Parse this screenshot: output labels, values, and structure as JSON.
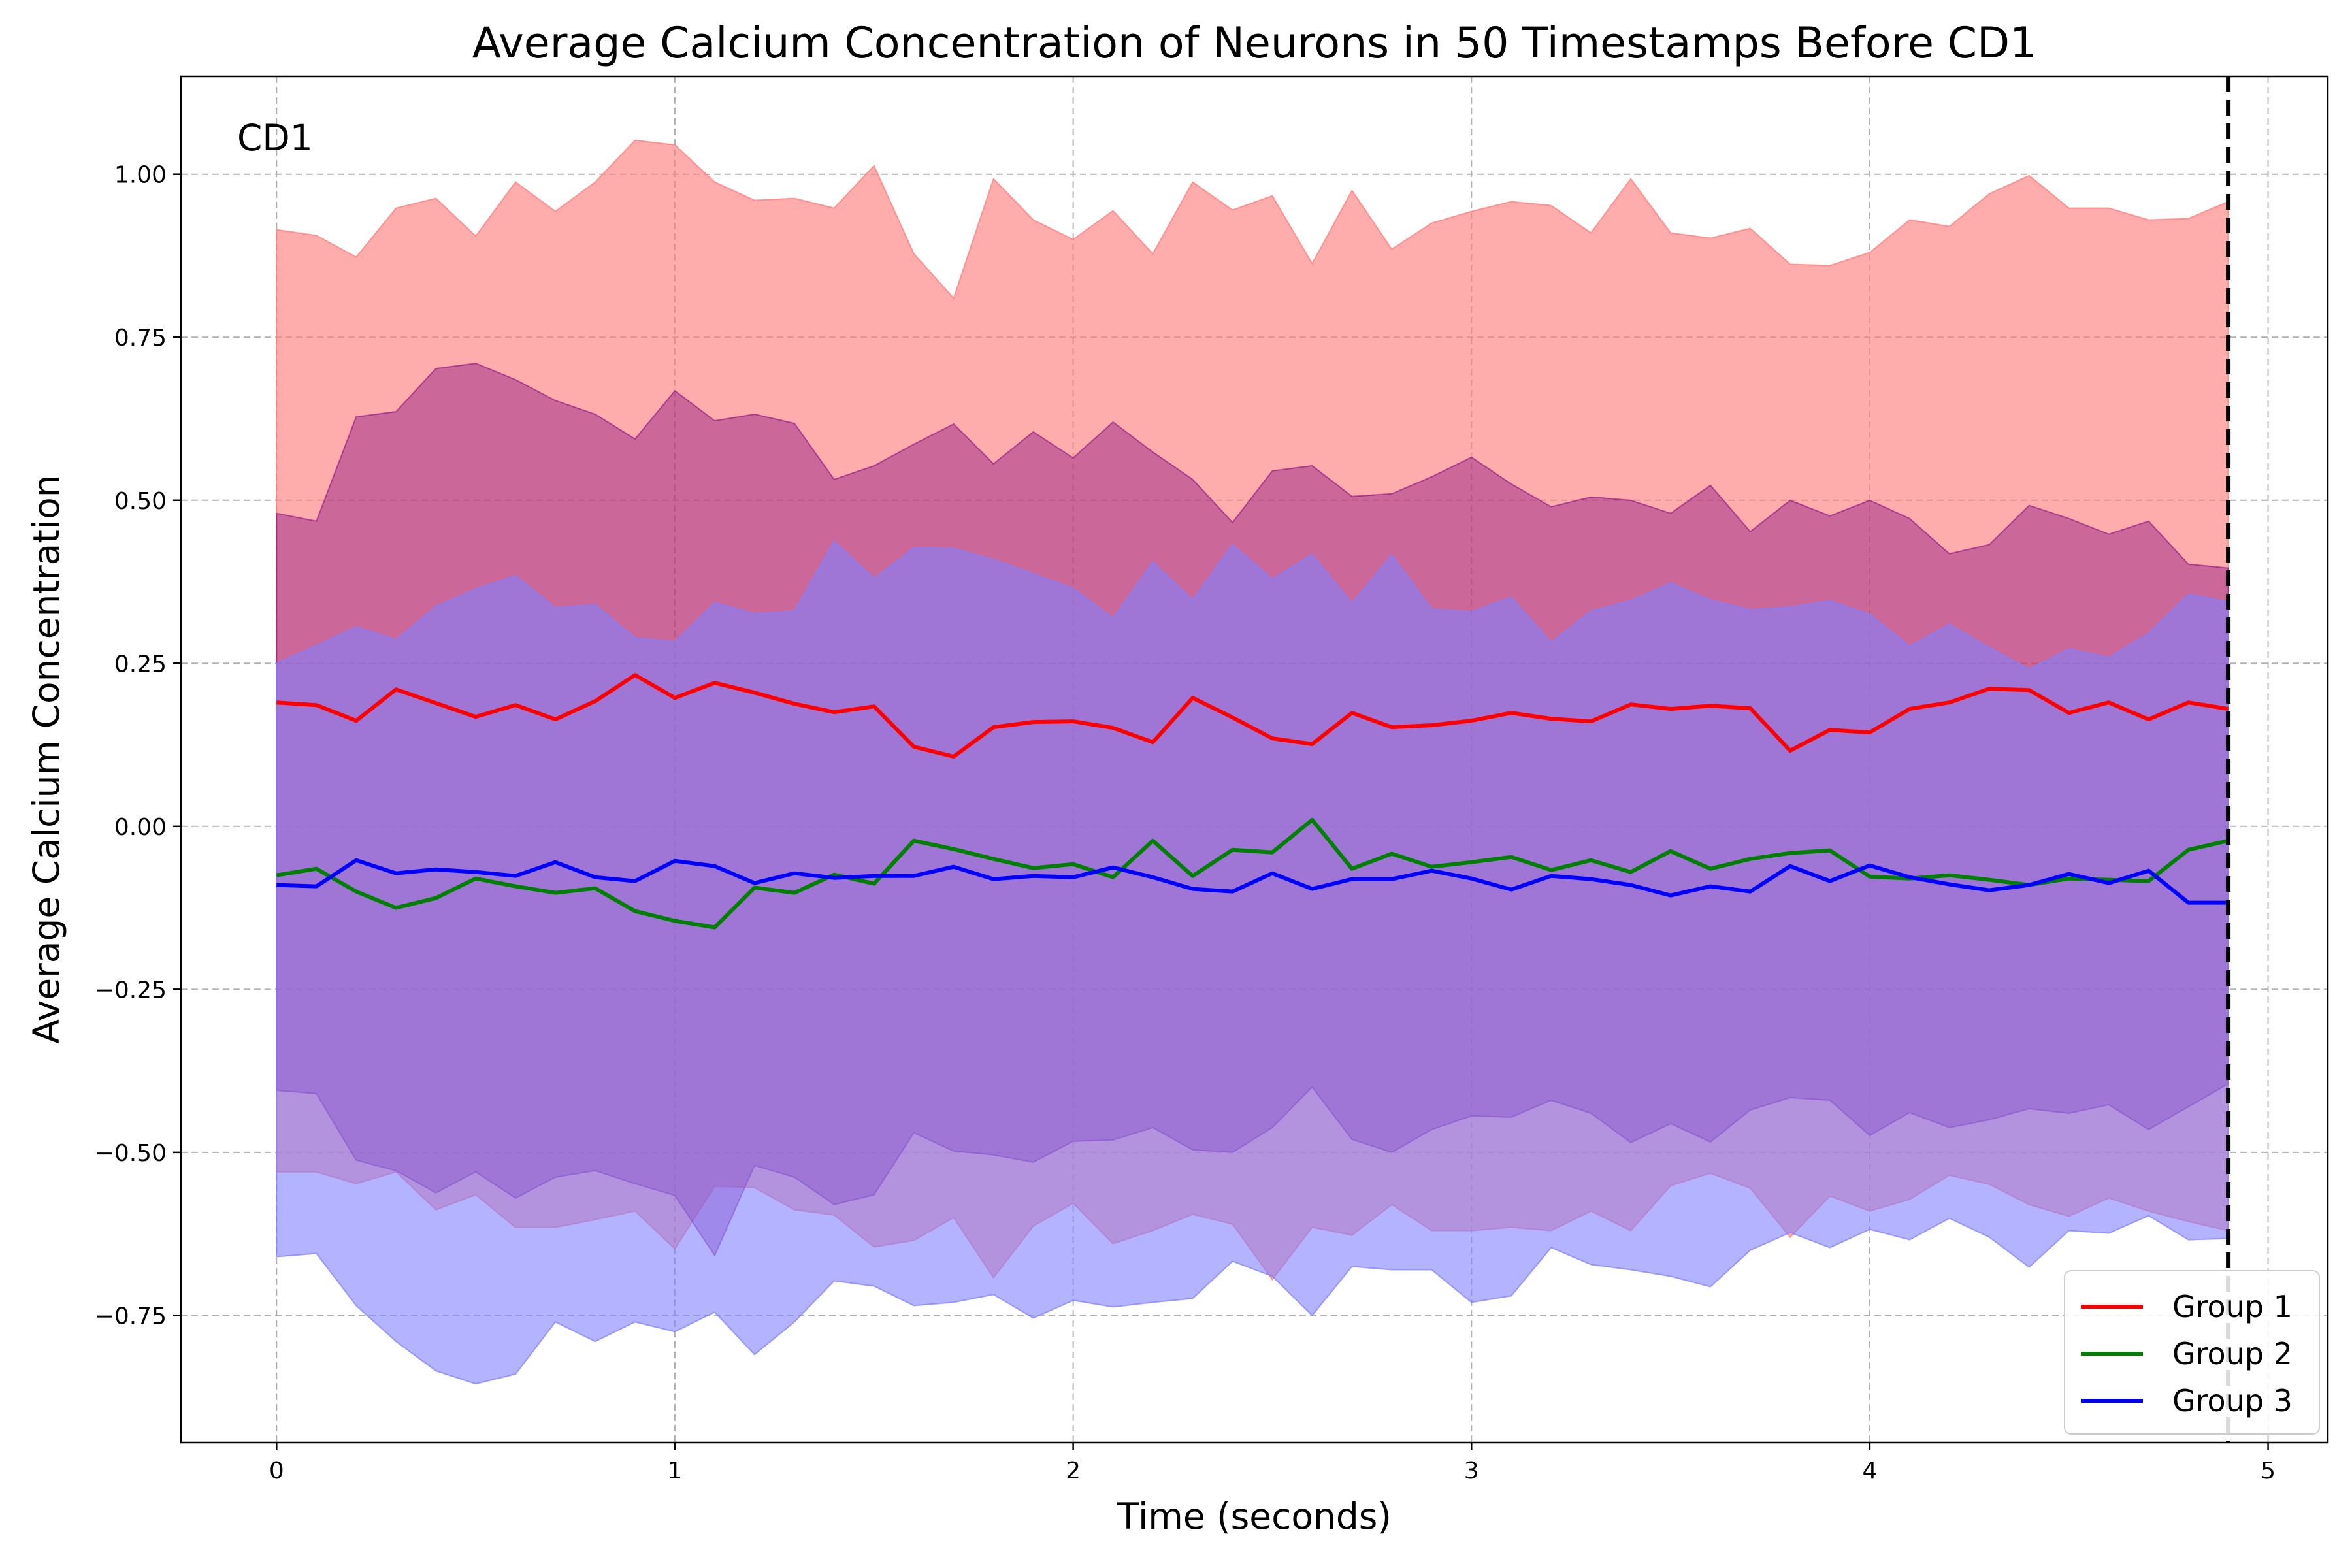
{
  "chart_data": {
    "type": "line",
    "title": "Average Calcium Concentration of Neurons in 50 Timestamps Before CD1",
    "xlabel": "Time (seconds)",
    "ylabel": "Average Calcium Concentration",
    "xlim": [
      -0.24,
      5.15
    ],
    "ylim": [
      -0.945,
      1.15
    ],
    "xticks": [
      0,
      1,
      2,
      3,
      4,
      5
    ],
    "xtick_labels": [
      "0",
      "1",
      "2",
      "3",
      "4",
      "5"
    ],
    "yticks": [
      -0.75,
      -0.5,
      -0.25,
      0.0,
      0.25,
      0.5,
      0.75,
      1.0
    ],
    "ytick_labels": [
      "−0.75",
      "−0.50",
      "−0.25",
      "0.00",
      "0.25",
      "0.50",
      "0.75",
      "1.00"
    ],
    "grid": true,
    "legend_position": "lower-right",
    "annotation": {
      "text": "CD1",
      "x": 4.9
    },
    "x": [
      0.0,
      0.1,
      0.2,
      0.3,
      0.4,
      0.5,
      0.6,
      0.7,
      0.8,
      0.9,
      1.0,
      1.1,
      1.2,
      1.3,
      1.4,
      1.5,
      1.6,
      1.7,
      1.8,
      1.9,
      2.0,
      2.1,
      2.2,
      2.3,
      2.4,
      2.5,
      2.6,
      2.7,
      2.8,
      2.9,
      3.0,
      3.1,
      3.2,
      3.3,
      3.4,
      3.5,
      3.6,
      3.7,
      3.8,
      3.9,
      4.0,
      4.1,
      4.2,
      4.3,
      4.4,
      4.5,
      4.6,
      4.7,
      4.8,
      4.9
    ],
    "series": [
      {
        "name": "Group 1",
        "color": "#ff0000",
        "band_color": "#ff8080",
        "band_opacity": 0.65,
        "values": [
          0.19,
          0.186,
          0.162,
          0.21,
          0.189,
          0.168,
          0.186,
          0.164,
          0.192,
          0.232,
          0.197,
          0.22,
          0.205,
          0.188,
          0.175,
          0.184,
          0.122,
          0.107,
          0.152,
          0.16,
          0.161,
          0.151,
          0.129,
          0.197,
          0.167,
          0.135,
          0.126,
          0.174,
          0.152,
          0.155,
          0.162,
          0.174,
          0.165,
          0.161,
          0.187,
          0.18,
          0.185,
          0.181,
          0.116,
          0.148,
          0.144,
          0.18,
          0.19,
          0.211,
          0.209,
          0.174,
          0.19,
          0.164,
          0.19,
          0.18
        ],
        "upper": [
          0.915,
          0.906,
          0.873,
          0.948,
          0.963,
          0.905,
          0.988,
          0.943,
          0.988,
          1.052,
          1.045,
          0.988,
          0.96,
          0.963,
          0.948,
          1.013,
          0.878,
          0.81,
          0.993,
          0.93,
          0.9,
          0.944,
          0.878,
          0.988,
          0.945,
          0.967,
          0.863,
          0.975,
          0.885,
          0.925,
          0.943,
          0.958,
          0.952,
          0.91,
          0.993,
          0.91,
          0.902,
          0.917,
          0.862,
          0.86,
          0.88,
          0.93,
          0.92,
          0.97,
          0.998,
          0.948,
          0.948,
          0.93,
          0.932,
          0.958
        ],
        "lower": [
          -0.53,
          -0.53,
          -0.548,
          -0.53,
          -0.588,
          -0.565,
          -0.615,
          -0.615,
          -0.603,
          -0.59,
          -0.648,
          -0.552,
          -0.554,
          -0.588,
          -0.596,
          -0.645,
          -0.635,
          -0.6,
          -0.692,
          -0.613,
          -0.578,
          -0.64,
          -0.62,
          -0.595,
          -0.61,
          -0.695,
          -0.615,
          -0.627,
          -0.58,
          -0.62,
          -0.62,
          -0.615,
          -0.62,
          -0.59,
          -0.62,
          -0.551,
          -0.532,
          -0.555,
          -0.63,
          -0.567,
          -0.59,
          -0.572,
          -0.535,
          -0.549,
          -0.58,
          -0.598,
          -0.57,
          -0.59,
          -0.606,
          -0.62
        ]
      },
      {
        "name": "Group 2",
        "color": "#008000",
        "band_color": "#800080",
        "band_opacity": 0.4,
        "values": [
          -0.075,
          -0.065,
          -0.1,
          -0.125,
          -0.11,
          -0.08,
          -0.092,
          -0.102,
          -0.095,
          -0.13,
          -0.145,
          -0.155,
          -0.094,
          -0.102,
          -0.074,
          -0.088,
          -0.022,
          -0.035,
          -0.05,
          -0.064,
          -0.058,
          -0.078,
          -0.022,
          -0.076,
          -0.036,
          -0.04,
          0.01,
          -0.065,
          -0.042,
          -0.062,
          -0.055,
          -0.047,
          -0.067,
          -0.052,
          -0.07,
          -0.038,
          -0.065,
          -0.05,
          -0.041,
          -0.037,
          -0.077,
          -0.08,
          -0.075,
          -0.082,
          -0.09,
          -0.08,
          -0.082,
          -0.084,
          -0.036,
          -0.022
        ],
        "upper": [
          0.48,
          0.468,
          0.628,
          0.636,
          0.702,
          0.71,
          0.685,
          0.653,
          0.632,
          0.594,
          0.668,
          0.622,
          0.632,
          0.618,
          0.532,
          0.553,
          0.586,
          0.617,
          0.556,
          0.605,
          0.565,
          0.62,
          0.574,
          0.532,
          0.466,
          0.545,
          0.553,
          0.506,
          0.51,
          0.536,
          0.566,
          0.525,
          0.49,
          0.505,
          0.5,
          0.48,
          0.523,
          0.452,
          0.5,
          0.476,
          0.5,
          0.472,
          0.418,
          0.432,
          0.492,
          0.472,
          0.448,
          0.468,
          0.402,
          0.396
        ],
        "lower": [
          -0.405,
          -0.41,
          -0.512,
          -0.528,
          -0.562,
          -0.53,
          -0.57,
          -0.538,
          -0.528,
          -0.548,
          -0.566,
          -0.658,
          -0.52,
          -0.538,
          -0.58,
          -0.565,
          -0.47,
          -0.498,
          -0.504,
          -0.515,
          -0.483,
          -0.481,
          -0.462,
          -0.496,
          -0.5,
          -0.462,
          -0.4,
          -0.48,
          -0.5,
          -0.465,
          -0.444,
          -0.446,
          -0.42,
          -0.44,
          -0.485,
          -0.456,
          -0.484,
          -0.435,
          -0.416,
          -0.42,
          -0.474,
          -0.439,
          -0.462,
          -0.45,
          -0.433,
          -0.44,
          -0.427,
          -0.465,
          -0.43,
          -0.395
        ]
      },
      {
        "name": "Group 3",
        "color": "#0000ff",
        "band_color": "#8080ff",
        "band_opacity": 0.6,
        "values": [
          -0.09,
          -0.092,
          -0.052,
          -0.072,
          -0.066,
          -0.07,
          -0.076,
          -0.055,
          -0.078,
          -0.084,
          -0.053,
          -0.061,
          -0.087,
          -0.072,
          -0.079,
          -0.076,
          -0.076,
          -0.062,
          -0.081,
          -0.076,
          -0.078,
          -0.063,
          -0.078,
          -0.096,
          -0.1,
          -0.072,
          -0.096,
          -0.081,
          -0.081,
          -0.068,
          -0.08,
          -0.097,
          -0.076,
          -0.081,
          -0.09,
          -0.106,
          -0.092,
          -0.1,
          -0.061,
          -0.084,
          -0.06,
          -0.078,
          -0.089,
          -0.098,
          -0.09,
          -0.073,
          -0.087,
          -0.068,
          -0.117,
          -0.117
        ],
        "upper": [
          0.25,
          0.277,
          0.306,
          0.286,
          0.337,
          0.364,
          0.384,
          0.335,
          0.34,
          0.289,
          0.283,
          0.343,
          0.326,
          0.33,
          0.437,
          0.38,
          0.427,
          0.426,
          0.409,
          0.387,
          0.365,
          0.319,
          0.405,
          0.347,
          0.432,
          0.379,
          0.417,
          0.342,
          0.416,
          0.333,
          0.329,
          0.351,
          0.282,
          0.33,
          0.346,
          0.373,
          0.347,
          0.332,
          0.336,
          0.346,
          0.325,
          0.276,
          0.31,
          0.274,
          0.241,
          0.272,
          0.259,
          0.296,
          0.356,
          0.344
        ],
        "lower": [
          -0.66,
          -0.655,
          -0.735,
          -0.79,
          -0.835,
          -0.855,
          -0.84,
          -0.76,
          -0.79,
          -0.76,
          -0.775,
          -0.745,
          -0.81,
          -0.76,
          -0.697,
          -0.705,
          -0.735,
          -0.73,
          -0.718,
          -0.754,
          -0.727,
          -0.737,
          -0.73,
          -0.724,
          -0.667,
          -0.69,
          -0.75,
          -0.675,
          -0.68,
          -0.68,
          -0.73,
          -0.72,
          -0.646,
          -0.672,
          -0.68,
          -0.69,
          -0.706,
          -0.65,
          -0.623,
          -0.646,
          -0.618,
          -0.634,
          -0.601,
          -0.63,
          -0.676,
          -0.62,
          -0.624,
          -0.597,
          -0.634,
          -0.632
        ]
      }
    ]
  }
}
